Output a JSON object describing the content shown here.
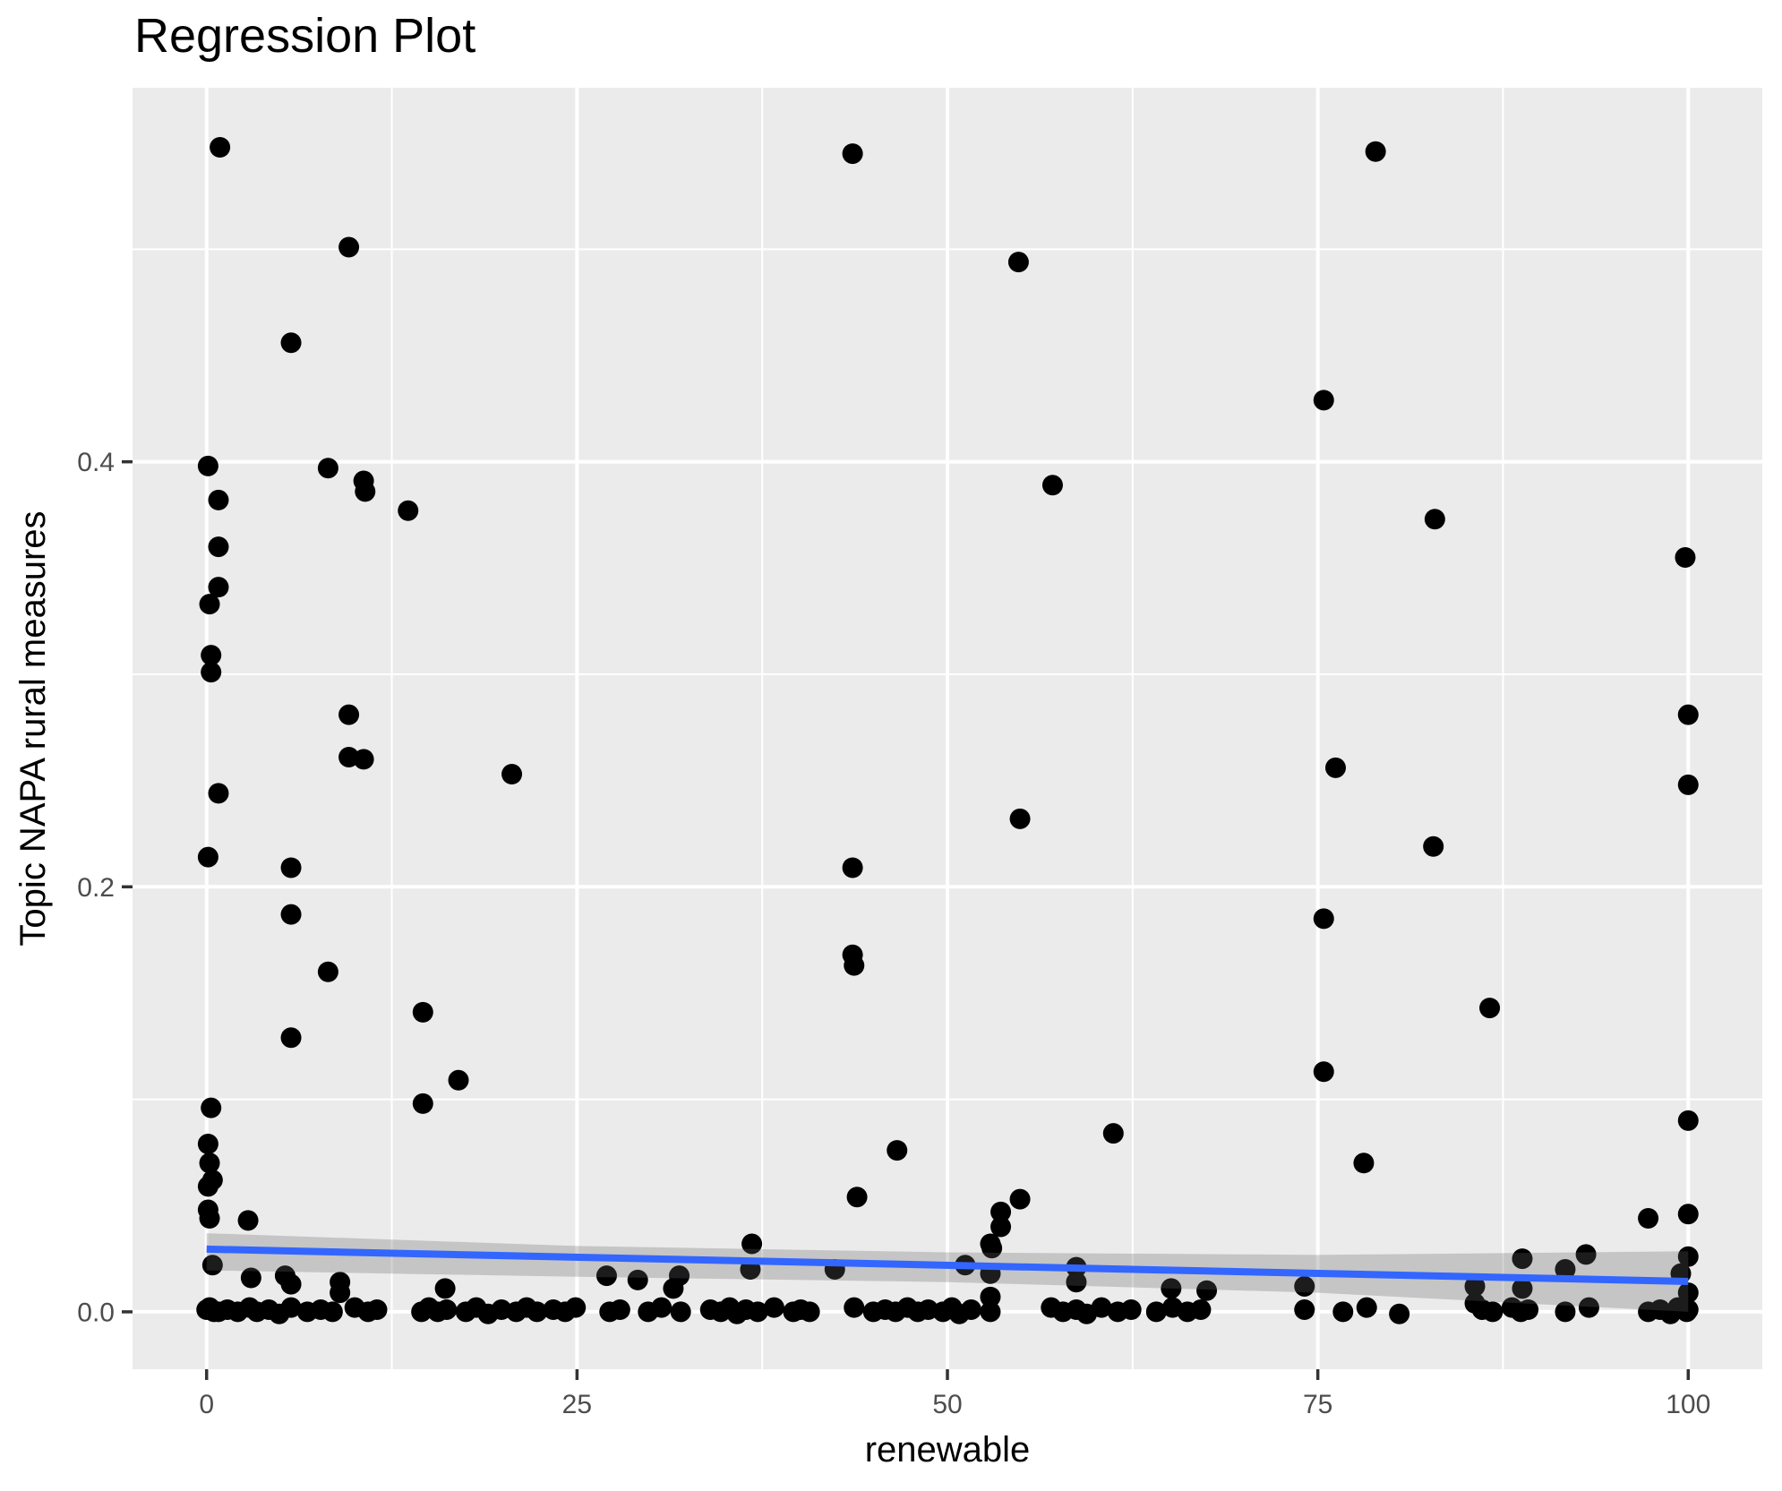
{
  "title": "Regression Plot",
  "chart_data": {
    "type": "scatter",
    "title": "Regression Plot",
    "xlabel": "renewable",
    "ylabel": "Topic NAPA rural measures",
    "xlim": [
      -5,
      105
    ],
    "ylim": [
      -0.027,
      0.576
    ],
    "x_ticks": [
      0,
      25,
      50,
      75,
      100
    ],
    "x_tick_labels": [
      "0",
      "25",
      "50",
      "75",
      "100"
    ],
    "y_ticks": [
      0.0,
      0.2,
      0.4
    ],
    "y_tick_labels": [
      "0.0",
      "0.2",
      "0.4"
    ],
    "x_minor": [
      12.5,
      37.5,
      62.5,
      87.5
    ],
    "y_minor": [
      0.1,
      0.3,
      0.5
    ],
    "grid": true,
    "legend": "none",
    "regression_line": {
      "x": [
        0,
        100
      ],
      "y": [
        0.0295,
        0.0143
      ]
    },
    "ci_upper": [
      [
        0,
        0.037
      ],
      [
        25,
        0.031
      ],
      [
        50,
        0.028
      ],
      [
        75,
        0.0268
      ],
      [
        100,
        0.0285
      ]
    ],
    "ci_lower": [
      [
        0,
        0.0195
      ],
      [
        25,
        0.0165
      ],
      [
        50,
        0.014
      ],
      [
        75,
        0.009
      ],
      [
        100,
        0.0
      ]
    ],
    "points": [
      [
        0.9,
        0.548
      ],
      [
        9.6,
        0.501
      ],
      [
        5.7,
        0.456
      ],
      [
        0.1,
        0.398
      ],
      [
        8.2,
        0.397
      ],
      [
        10.6,
        0.391
      ],
      [
        10.7,
        0.386
      ],
      [
        0.8,
        0.382
      ],
      [
        13.6,
        0.377
      ],
      [
        0.8,
        0.36
      ],
      [
        0.8,
        0.341
      ],
      [
        0.2,
        0.333
      ],
      [
        0.3,
        0.309
      ],
      [
        0.3,
        0.301
      ],
      [
        9.6,
        0.281
      ],
      [
        43.6,
        0.545
      ],
      [
        54.8,
        0.494
      ],
      [
        57.1,
        0.389
      ],
      [
        78.9,
        0.546
      ],
      [
        75.4,
        0.429
      ],
      [
        82.9,
        0.373
      ],
      [
        99.8,
        0.355
      ],
      [
        100,
        0.281
      ],
      [
        9.6,
        0.261
      ],
      [
        10.6,
        0.26
      ],
      [
        20.6,
        0.253
      ],
      [
        0.8,
        0.244
      ],
      [
        0.1,
        0.214
      ],
      [
        5.7,
        0.209
      ],
      [
        5.7,
        0.187
      ],
      [
        8.2,
        0.16
      ],
      [
        14.6,
        0.141
      ],
      [
        5.7,
        0.129
      ],
      [
        17.0,
        0.109
      ],
      [
        14.6,
        0.098
      ],
      [
        0.3,
        0.096
      ],
      [
        0.1,
        0.079
      ],
      [
        0.2,
        0.07
      ],
      [
        0.4,
        0.062
      ],
      [
        0.1,
        0.059
      ],
      [
        0.1,
        0.048
      ],
      [
        0.2,
        0.044
      ],
      [
        2.8,
        0.043
      ],
      [
        54.9,
        0.232
      ],
      [
        43.6,
        0.209
      ],
      [
        43.6,
        0.168
      ],
      [
        43.7,
        0.163
      ],
      [
        61.2,
        0.084
      ],
      [
        46.6,
        0.076
      ],
      [
        43.9,
        0.054
      ],
      [
        54.9,
        0.053
      ],
      [
        53.6,
        0.047
      ],
      [
        53.6,
        0.04
      ],
      [
        53.0,
        0.03
      ],
      [
        36.8,
        0.032
      ],
      [
        36.7,
        0.02
      ],
      [
        76.2,
        0.256
      ],
      [
        100,
        0.248
      ],
      [
        82.8,
        0.219
      ],
      [
        75.4,
        0.185
      ],
      [
        86.6,
        0.143
      ],
      [
        75.4,
        0.113
      ],
      [
        100,
        0.09
      ],
      [
        78.1,
        0.07
      ],
      [
        97.3,
        0.044
      ],
      [
        100,
        0.046
      ],
      [
        74.1,
        0.012
      ],
      [
        85.6,
        0.012
      ],
      [
        85.6,
        0.004
      ],
      [
        88.8,
        0.025
      ],
      [
        88.8,
        0.011
      ],
      [
        91.7,
        0.02
      ],
      [
        93.1,
        0.027
      ],
      [
        99.5,
        0.018
      ],
      [
        100,
        0.009
      ],
      [
        100,
        0.026
      ],
      [
        0.4,
        0.022
      ],
      [
        3.0,
        0.016
      ],
      [
        5.3,
        0.017
      ],
      [
        5.7,
        0.013
      ],
      [
        9.0,
        0.014
      ],
      [
        9.0,
        0.009
      ],
      [
        27.0,
        0.017
      ],
      [
        16.1,
        0.011
      ],
      [
        29.1,
        0.015
      ],
      [
        31.9,
        0.017
      ],
      [
        31.5,
        0.011
      ],
      [
        52.9,
        0.032
      ],
      [
        52.9,
        0.018
      ],
      [
        51.2,
        0.022
      ],
      [
        58.7,
        0.021
      ],
      [
        58.7,
        0.014
      ],
      [
        52.9,
        0.007
      ],
      [
        65.1,
        0.011
      ],
      [
        67.5,
        0.01
      ],
      [
        42.4,
        0.02
      ],
      [
        0.0,
        0.001
      ],
      [
        0.5,
        0.0
      ],
      [
        0.2,
        0.002
      ],
      [
        0.8,
        0.0
      ],
      [
        1.4,
        0.001
      ],
      [
        2.1,
        0.0
      ],
      [
        2.9,
        0.002
      ],
      [
        3.4,
        0.0
      ],
      [
        4.2,
        0.001
      ],
      [
        4.9,
        -0.001
      ],
      [
        5.7,
        0.002
      ],
      [
        6.8,
        0.0
      ],
      [
        7.7,
        0.001
      ],
      [
        8.5,
        0.0
      ],
      [
        10.0,
        0.002
      ],
      [
        10.9,
        0.0
      ],
      [
        11.5,
        0.001
      ],
      [
        14.5,
        0.0
      ],
      [
        15.0,
        0.002
      ],
      [
        15.6,
        0.0
      ],
      [
        16.2,
        0.001
      ],
      [
        17.5,
        0.0
      ],
      [
        18.2,
        0.002
      ],
      [
        19.0,
        -0.001
      ],
      [
        19.9,
        0.001
      ],
      [
        20.9,
        0.0
      ],
      [
        21.6,
        0.002
      ],
      [
        22.3,
        0.0
      ],
      [
        23.4,
        0.001
      ],
      [
        24.2,
        0.0
      ],
      [
        24.9,
        0.002
      ],
      [
        27.2,
        0.0
      ],
      [
        27.9,
        0.001
      ],
      [
        29.8,
        0.0
      ],
      [
        30.7,
        0.002
      ],
      [
        32.0,
        0.0
      ],
      [
        34.0,
        0.001
      ],
      [
        34.7,
        0.0
      ],
      [
        35.3,
        0.002
      ],
      [
        35.8,
        -0.001
      ],
      [
        36.4,
        0.001
      ],
      [
        37.2,
        0.0
      ],
      [
        38.3,
        0.002
      ],
      [
        39.6,
        0.0
      ],
      [
        40.1,
        0.001
      ],
      [
        40.7,
        0.0
      ],
      [
        43.7,
        0.002
      ],
      [
        45.0,
        0.0
      ],
      [
        45.8,
        0.001
      ],
      [
        46.5,
        0.0
      ],
      [
        47.3,
        0.002
      ],
      [
        48.0,
        0.0
      ],
      [
        48.7,
        0.001
      ],
      [
        49.7,
        0.0
      ],
      [
        50.3,
        0.002
      ],
      [
        50.8,
        -0.001
      ],
      [
        51.6,
        0.001
      ],
      [
        52.9,
        0.0
      ],
      [
        57.0,
        0.002
      ],
      [
        57.8,
        0.0
      ],
      [
        58.7,
        0.001
      ],
      [
        59.4,
        -0.001
      ],
      [
        60.4,
        0.002
      ],
      [
        61.5,
        0.0
      ],
      [
        62.4,
        0.001
      ],
      [
        64.1,
        0.0
      ],
      [
        65.2,
        0.002
      ],
      [
        66.2,
        0.0
      ],
      [
        67.1,
        0.001
      ],
      [
        74.1,
        0.001
      ],
      [
        76.7,
        0.0
      ],
      [
        78.3,
        0.002
      ],
      [
        80.5,
        -0.001
      ],
      [
        86.1,
        0.001
      ],
      [
        86.8,
        0.0
      ],
      [
        88.1,
        0.002
      ],
      [
        88.7,
        0.0
      ],
      [
        89.2,
        0.001
      ],
      [
        91.7,
        0.0
      ],
      [
        93.3,
        0.002
      ],
      [
        97.3,
        0.0
      ],
      [
        98.1,
        0.001
      ],
      [
        98.8,
        -0.001
      ],
      [
        99.3,
        0.002
      ],
      [
        99.9,
        0.0
      ],
      [
        100.0,
        0.001
      ]
    ]
  },
  "style": {
    "panel_bg": "#EBEBEB",
    "grid_color": "#FFFFFF",
    "point_color": "#000000",
    "line_color": "#3366FF",
    "band_color": "#666666",
    "band_opacity": 0.28,
    "tick_color": "#333333",
    "tick_label_color": "#4D4D4D",
    "axis_title_color": "#000000",
    "title_color": "#000000"
  }
}
